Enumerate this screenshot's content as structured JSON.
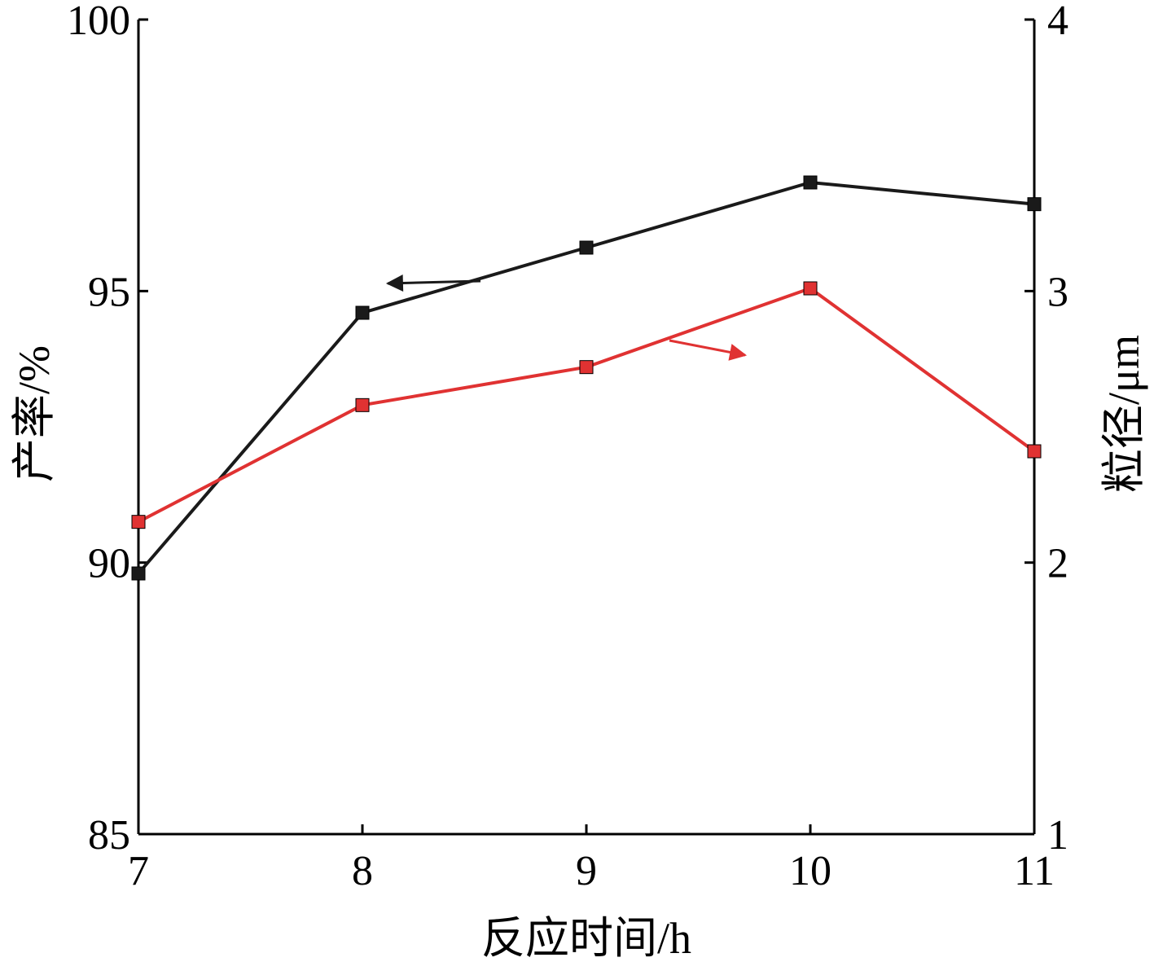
{
  "chart_data": {
    "type": "line",
    "xlabel": "反应时间/h",
    "ylabel_left": "产率/%",
    "ylabel_right": "粒径/μm",
    "x_ticks": [
      7,
      8,
      9,
      10,
      11
    ],
    "xlim": [
      7,
      11
    ],
    "ylim_left": [
      85,
      100
    ],
    "y_ticks_left": [
      85,
      90,
      95,
      100
    ],
    "ylim_right": [
      1,
      4
    ],
    "y_ticks_right": [
      1,
      2,
      3,
      4
    ],
    "grid": false,
    "series": [
      {
        "axis": "left",
        "color": "#1a1a1a",
        "marker": "square",
        "x": [
          7,
          8,
          9,
          10,
          11
        ],
        "values": [
          89.8,
          94.6,
          95.8,
          97.0,
          96.6
        ]
      },
      {
        "axis": "right",
        "color": "#e03232",
        "marker": "square",
        "x": [
          7,
          8,
          9,
          10,
          11
        ],
        "values": [
          2.15,
          2.58,
          2.72,
          3.01,
          2.41
        ]
      }
    ],
    "annotations": [
      {
        "type": "arrow",
        "points_to": "left-axis",
        "color": "#1a1a1a"
      },
      {
        "type": "arrow",
        "points_to": "right-axis",
        "color": "#e03232"
      }
    ]
  }
}
